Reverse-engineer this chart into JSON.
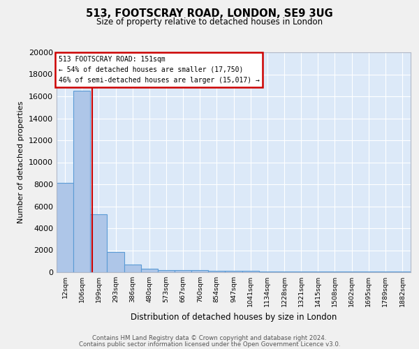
{
  "title1": "513, FOOTSCRAY ROAD, LONDON, SE9 3UG",
  "title2": "Size of property relative to detached houses in London",
  "xlabel": "Distribution of detached houses by size in London",
  "ylabel": "Number of detached properties",
  "categories": [
    "12sqm",
    "106sqm",
    "199sqm",
    "293sqm",
    "386sqm",
    "480sqm",
    "573sqm",
    "667sqm",
    "760sqm",
    "854sqm",
    "947sqm",
    "1041sqm",
    "1134sqm",
    "1228sqm",
    "1321sqm",
    "1415sqm",
    "1508sqm",
    "1602sqm",
    "1695sqm",
    "1789sqm",
    "1882sqm"
  ],
  "values": [
    8100,
    16500,
    5300,
    1850,
    700,
    300,
    220,
    200,
    170,
    150,
    130,
    110,
    90,
    80,
    70,
    60,
    55,
    50,
    45,
    40,
    35
  ],
  "bar_color": "#aec6e8",
  "bar_edge_color": "#5b9bd5",
  "red_line_index": 1.62,
  "annotation_title": "513 FOOTSCRAY ROAD: 151sqm",
  "annotation_line1": "← 54% of detached houses are smaller (17,750)",
  "annotation_line2": "46% of semi-detached houses are larger (15,017) →",
  "annotation_box_color": "#ffffff",
  "annotation_box_edge": "#cc0000",
  "footer1": "Contains HM Land Registry data © Crown copyright and database right 2024.",
  "footer2": "Contains public sector information licensed under the Open Government Licence v3.0.",
  "fig_bg_color": "#f0f0f0",
  "plot_bg_color": "#dce9f8",
  "ylim": [
    0,
    20000
  ],
  "yticks": [
    0,
    2000,
    4000,
    6000,
    8000,
    10000,
    12000,
    14000,
    16000,
    18000,
    20000
  ]
}
